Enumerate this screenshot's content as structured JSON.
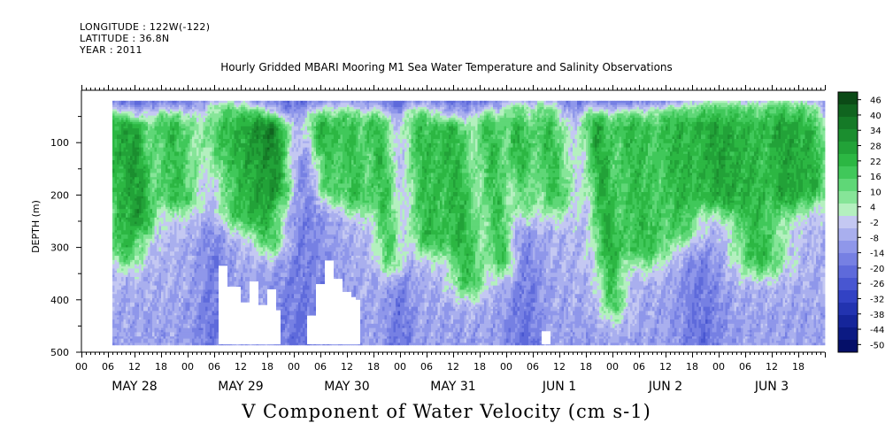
{
  "header": {
    "longitude": "LONGITUDE : 122W(-122)",
    "latitude": "LATITUDE : 36.8N",
    "year": "YEAR : 2011"
  },
  "chart_data": {
    "type": "heatmap",
    "title": "Hourly Gridded MBARI Mooring M1 Sea Water Temperature and Salinity Observations",
    "subtitle": "V Component of Water Velocity (cm s-1)",
    "ylabel": "DEPTH (m)",
    "y_reversed": true,
    "ylim": [
      0,
      500
    ],
    "y_ticks": [
      100,
      200,
      300,
      400,
      500
    ],
    "x_hour_ticks": [
      "00",
      "06",
      "12",
      "18",
      "00",
      "06",
      "12",
      "18",
      "00",
      "06",
      "12",
      "18",
      "00",
      "06",
      "12",
      "18",
      "00",
      "06",
      "12",
      "18",
      "00",
      "06",
      "12",
      "18",
      "00",
      "06",
      "12",
      "18"
    ],
    "x_date_labels": [
      "MAY 28",
      "MAY 29",
      "MAY 30",
      "MAY 31",
      "JUN  1",
      "JUN  2",
      "JUN  3"
    ],
    "xlim_hours": [
      0,
      168
    ],
    "data_start_hour": 7,
    "data_depth_range": [
      20,
      485
    ],
    "colorbar": {
      "ticks": [
        46,
        40,
        34,
        28,
        22,
        16,
        10,
        4,
        -2,
        -8,
        -14,
        -20,
        -26,
        -32,
        -38,
        -44,
        -50
      ],
      "colors_top_to_bottom": [
        "#0b4a16",
        "#10641f",
        "#157a27",
        "#1b8e2f",
        "#22a238",
        "#2cb743",
        "#40c85a",
        "#5fd777",
        "#86e598",
        "#b4f0bf",
        "#c4c8f2",
        "#a9afee",
        "#8f97ea",
        "#7680e3",
        "#5e6adb",
        "#4856d1",
        "#3242c4",
        "#2233b0",
        "#15259a",
        "#0b1a83",
        "#050f68"
      ]
    },
    "green_events": [
      {
        "t": 7,
        "d0": 60,
        "d1": 300,
        "w": 4
      },
      {
        "t": 12,
        "d0": 80,
        "d1": 240,
        "w": 3
      },
      {
        "t": 20,
        "d0": 60,
        "d1": 200,
        "w": 5
      },
      {
        "t": 33,
        "d0": 40,
        "d1": 230,
        "w": 6
      },
      {
        "t": 40,
        "d0": 60,
        "d1": 280,
        "w": 4
      },
      {
        "t": 44,
        "d0": 80,
        "d1": 180,
        "w": 3
      },
      {
        "t": 54,
        "d0": 60,
        "d1": 180,
        "w": 3
      },
      {
        "t": 60,
        "d0": 50,
        "d1": 200,
        "w": 4
      },
      {
        "t": 67,
        "d0": 60,
        "d1": 320,
        "w": 3
      },
      {
        "t": 76,
        "d0": 50,
        "d1": 280,
        "w": 5
      },
      {
        "t": 84,
        "d0": 80,
        "d1": 360,
        "w": 4
      },
      {
        "t": 92,
        "d0": 60,
        "d1": 320,
        "w": 3
      },
      {
        "t": 98,
        "d0": 40,
        "d1": 220,
        "w": 3
      },
      {
        "t": 105,
        "d0": 40,
        "d1": 200,
        "w": 4
      },
      {
        "t": 116,
        "d0": 60,
        "d1": 400,
        "w": 3
      },
      {
        "t": 124,
        "d0": 60,
        "d1": 300,
        "w": 6
      },
      {
        "t": 134,
        "d0": 50,
        "d1": 260,
        "w": 5
      },
      {
        "t": 142,
        "d0": 40,
        "d1": 200,
        "w": 5
      },
      {
        "t": 150,
        "d0": 40,
        "d1": 320,
        "w": 6
      },
      {
        "t": 158,
        "d0": 40,
        "d1": 200,
        "w": 4
      },
      {
        "t": 164,
        "d0": 40,
        "d1": 180,
        "w": 4
      }
    ],
    "blue_events": [
      {
        "t": 30,
        "d0": 180,
        "d1": 485,
        "w": 4
      },
      {
        "t": 50,
        "d0": 150,
        "d1": 485,
        "w": 8
      },
      {
        "t": 72,
        "d0": 20,
        "d1": 485,
        "w": 3
      },
      {
        "t": 100,
        "d0": 200,
        "d1": 485,
        "w": 4
      },
      {
        "t": 140,
        "d0": 260,
        "d1": 485,
        "w": 5
      }
    ],
    "missing_regions": [
      {
        "h0": 31,
        "h1": 33,
        "d0": 335,
        "d1": 485
      },
      {
        "h0": 33,
        "h1": 36,
        "d0": 375,
        "d1": 485
      },
      {
        "h0": 36,
        "h1": 38,
        "d0": 405,
        "d1": 485
      },
      {
        "h0": 38,
        "h1": 40,
        "d0": 365,
        "d1": 485
      },
      {
        "h0": 40,
        "h1": 42,
        "d0": 410,
        "d1": 485
      },
      {
        "h0": 42,
        "h1": 44,
        "d0": 380,
        "d1": 485
      },
      {
        "h0": 44,
        "h1": 45,
        "d0": 420,
        "d1": 485
      },
      {
        "h0": 51,
        "h1": 53,
        "d0": 430,
        "d1": 485
      },
      {
        "h0": 53,
        "h1": 55,
        "d0": 370,
        "d1": 485
      },
      {
        "h0": 55,
        "h1": 57,
        "d0": 325,
        "d1": 485
      },
      {
        "h0": 57,
        "h1": 59,
        "d0": 360,
        "d1": 485
      },
      {
        "h0": 59,
        "h1": 61,
        "d0": 385,
        "d1": 485
      },
      {
        "h0": 61,
        "h1": 62,
        "d0": 395,
        "d1": 485
      },
      {
        "h0": 62,
        "h1": 63,
        "d0": 400,
        "d1": 485
      },
      {
        "h0": 104,
        "h1": 106,
        "d0": 460,
        "d1": 485
      }
    ]
  }
}
